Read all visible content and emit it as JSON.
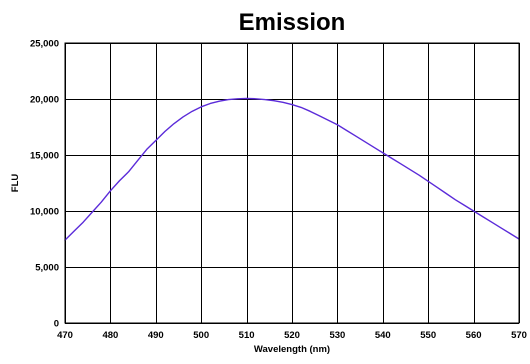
{
  "chart_data": {
    "type": "line",
    "title": "Emission",
    "xlabel": "Wavelength (nm)",
    "ylabel": "FLU",
    "xlim": [
      470,
      570
    ],
    "ylim": [
      0,
      25000
    ],
    "grid": true,
    "legend": "none",
    "x_ticks": [
      470,
      480,
      490,
      500,
      510,
      520,
      530,
      540,
      550,
      560,
      570
    ],
    "y_ticks": [
      0,
      5000,
      10000,
      15000,
      20000,
      25000
    ],
    "x_tick_labels": [
      "470",
      "480",
      "490",
      "500",
      "510",
      "520",
      "530",
      "540",
      "550",
      "560",
      "570"
    ],
    "y_tick_labels": [
      "0",
      "5,000",
      "10,000",
      "15,000",
      "20,000",
      "25,000"
    ],
    "series": [
      {
        "color": "#5b2bd9",
        "x": [
          470,
          472,
          474,
          476,
          478,
          480,
          482,
          484,
          486,
          488,
          490,
          492,
          494,
          496,
          498,
          500,
          502,
          504,
          506,
          508,
          510,
          512,
          514,
          516,
          518,
          520,
          522,
          524,
          526,
          528,
          530,
          532,
          534,
          536,
          538,
          540,
          542,
          544,
          546,
          548,
          550,
          552,
          554,
          556,
          558,
          560,
          562,
          564,
          566,
          568,
          570
        ],
        "y": [
          7400,
          8200,
          9000,
          9900,
          10800,
          11800,
          12700,
          13500,
          14500,
          15500,
          16300,
          17100,
          17800,
          18400,
          18900,
          19300,
          19600,
          19800,
          19950,
          20020,
          20050,
          20020,
          19950,
          19850,
          19700,
          19500,
          19250,
          18900,
          18500,
          18100,
          17700,
          17200,
          16700,
          16200,
          15700,
          15200,
          14700,
          14200,
          13700,
          13200,
          12650,
          12100,
          11550,
          11000,
          10500,
          10000,
          9500,
          9000,
          8500,
          8000,
          7500
        ]
      }
    ]
  }
}
